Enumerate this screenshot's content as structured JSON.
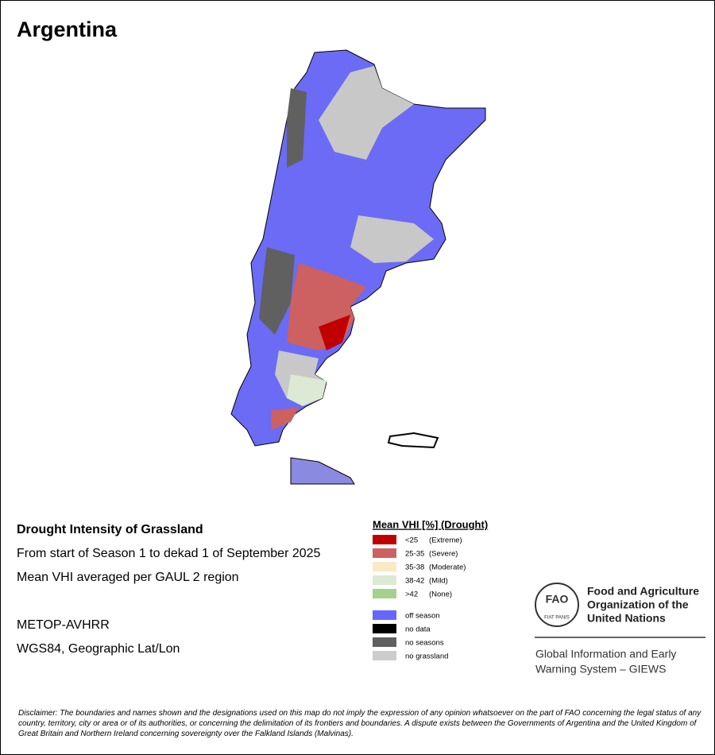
{
  "title": "Argentina",
  "info": {
    "heading": "Drought Intensity of Grassland",
    "lines": [
      "From start of Season 1 to dekad 1 of September 2025",
      "Mean VHI averaged per GAUL 2 region"
    ],
    "meta": [
      "METOP-AVHRR",
      "WGS84, Geographic Lat/Lon"
    ]
  },
  "legend": {
    "title": "Mean VHI [%] (Drought)",
    "drought_classes": [
      {
        "range": "<25",
        "label": "(Extreme)",
        "color": "#c00000"
      },
      {
        "range": "25-35",
        "label": "(Severe)",
        "color": "#cd6060"
      },
      {
        "range": "35-38",
        "label": "(Moderate)",
        "color": "#fbe9c6"
      },
      {
        "range": "38-42",
        "label": "(Mild)",
        "color": "#dce9d4"
      },
      {
        "range": ">42",
        "label": "(None)",
        "color": "#a6d08c"
      }
    ],
    "other_classes": [
      {
        "label": "off season",
        "color": "#6666ff"
      },
      {
        "label": "no data",
        "color": "#000000"
      },
      {
        "label": "no seasons",
        "color": "#606060"
      },
      {
        "label": "no grassland",
        "color": "#cccccc"
      }
    ]
  },
  "logo": {
    "emblem": "FAO",
    "motto": "FIAT PANIS",
    "org": [
      "Food and Agriculture",
      "Organization of the",
      "United Nations"
    ],
    "system": [
      "Global Information and Early",
      "Warning System – GIEWS"
    ]
  },
  "disclaimer": "Disclaimer: The boundaries and names shown and the designations used on this map do not imply the expression of any opinion whatsoever on the part of FAO concerning the legal status of any country, territory, city or area or of its authorities, or concerning the delimitation of its frontiers and boundaries. A dispute exists between the Governments of Argentina and the United Kingdom of Great Britain and Northern Ireland concerning sovereignty over the Falkland Islands (Malvinas)."
}
